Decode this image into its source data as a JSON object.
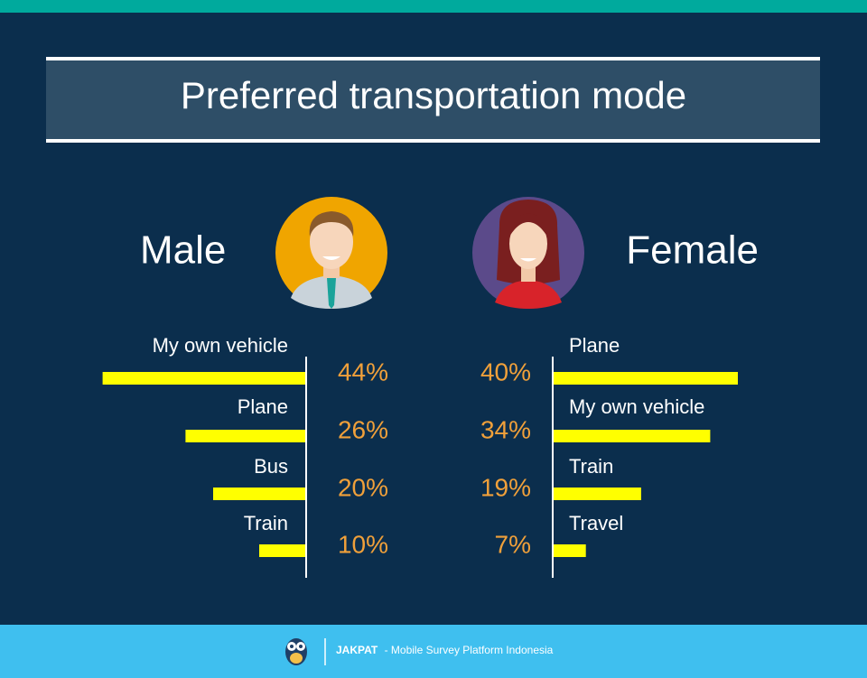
{
  "title": "Preferred transportation mode",
  "chart_data": [
    {
      "type": "bar",
      "title": "Male",
      "categories": [
        "My own vehicle",
        "Plane",
        "Bus",
        "Train"
      ],
      "values": [
        44,
        26,
        20,
        10
      ],
      "value_labels": [
        "44%",
        "26%",
        "20%",
        "10%"
      ],
      "color": "#ffff00",
      "orientation": "leftward"
    },
    {
      "type": "bar",
      "title": "Female",
      "categories": [
        "Plane",
        "My own vehicle",
        "Train",
        "Travel"
      ],
      "values": [
        40,
        34,
        19,
        7
      ],
      "value_labels": [
        "40%",
        "34%",
        "19%",
        "7%"
      ],
      "color": "#ffff00",
      "orientation": "rightward"
    }
  ],
  "footer": {
    "brand": "JAKPAT",
    "tagline": "- Mobile Survey Platform Indonesia"
  }
}
